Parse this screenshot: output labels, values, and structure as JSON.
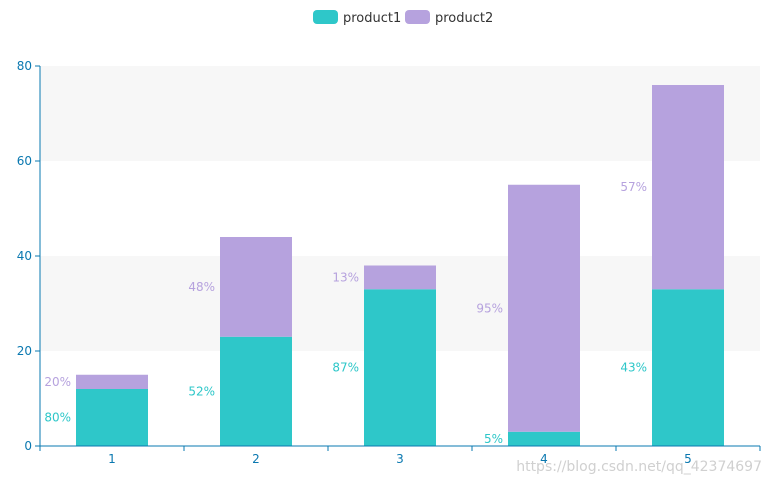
{
  "chart_data": {
    "type": "bar",
    "stacked": true,
    "categories": [
      "1",
      "2",
      "3",
      "4",
      "5"
    ],
    "series": [
      {
        "name": "product1",
        "values": [
          12,
          23,
          33,
          3,
          33
        ],
        "percent_labels": [
          "80%",
          "52%",
          "87%",
          "5%",
          "43%"
        ],
        "color": "#2ec7c9"
      },
      {
        "name": "product2",
        "values": [
          3,
          21,
          5,
          52,
          43
        ],
        "percent_labels": [
          "20%",
          "48%",
          "13%",
          "95%",
          "57%"
        ],
        "color": "#b6a2de"
      }
    ],
    "ylim": [
      0,
      80
    ],
    "y_ticks": [
      "0",
      "20",
      "40",
      "60",
      "80"
    ],
    "grid": true,
    "legend_position": "top-center",
    "axis_color": "#0a78b0",
    "band_color": "#f7f7f7"
  },
  "watermark": "https://blog.csdn.net/qq_42374697"
}
